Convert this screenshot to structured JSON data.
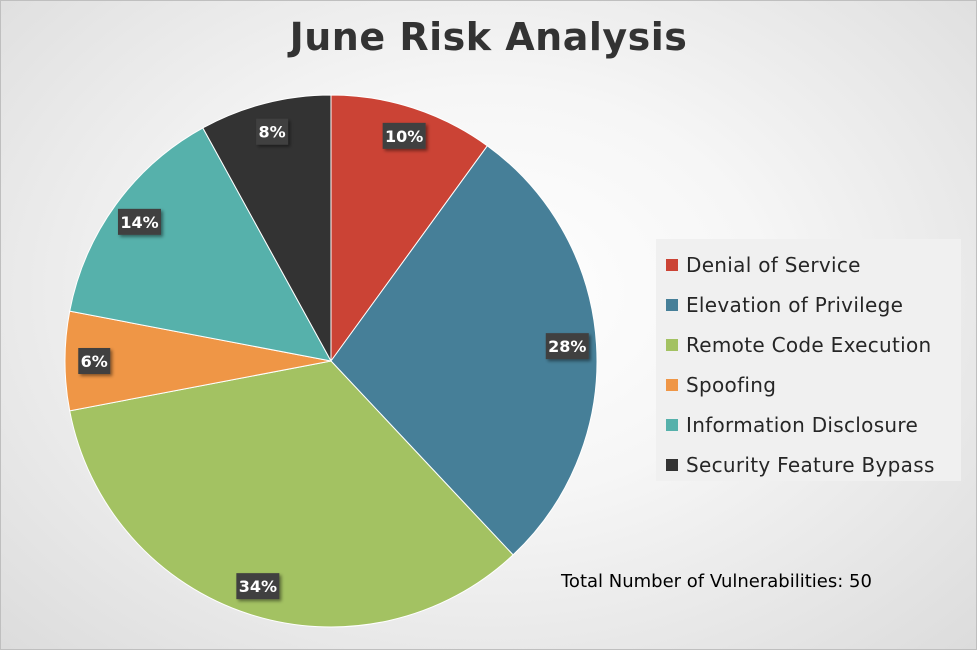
{
  "chart_data": {
    "type": "pie",
    "title": "June Risk Analysis",
    "categories": [
      "Denial of Service",
      "Elevation of Privilege",
      "Remote Code Execution",
      "Spoofing",
      "Information Disclosure",
      "Security Feature Bypass"
    ],
    "values": [
      10,
      28,
      34,
      6,
      14,
      8
    ],
    "data_labels": [
      "10%",
      "28%",
      "34%",
      "6%",
      "14%",
      "8%"
    ],
    "colors": [
      "#cb4335",
      "#467f98",
      "#a3c262",
      "#ef9646",
      "#56b1ab",
      "#333333"
    ],
    "legend_position": "right",
    "annotation": "Total Number of Vulnerabilities: 50"
  }
}
